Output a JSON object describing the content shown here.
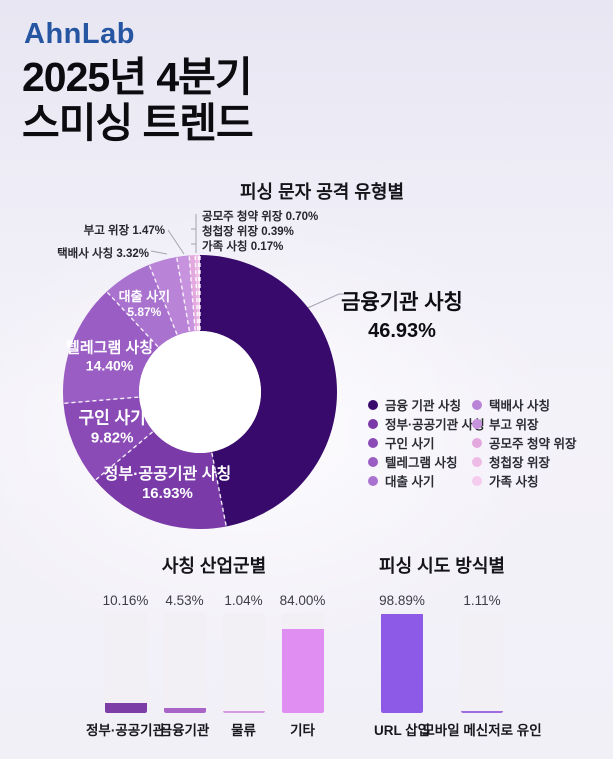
{
  "brand": {
    "logo": "AhnLab",
    "color": "#2656a2"
  },
  "title": {
    "line1": "2025년 4분기",
    "line2": "스미싱 트렌드"
  },
  "chart_data": [
    {
      "type": "pie",
      "title": "피싱 문자 공격 유형별",
      "unit": "%",
      "inner_radius_ratio": 0.445,
      "segments": [
        {
          "label": "금융기관 사칭",
          "value": 46.93,
          "color": "#380a6c"
        },
        {
          "label": "정부·공공기관 사칭",
          "value": 16.93,
          "color": "#7a3aa8"
        },
        {
          "label": "구인 사기",
          "value": 9.82,
          "color": "#8b4bb6"
        },
        {
          "label": "텔레그램 사칭",
          "value": 14.4,
          "color": "#9a5dc4"
        },
        {
          "label": "대출 사기",
          "value": 5.87,
          "color": "#aa72cf"
        },
        {
          "label": "택배사 사칭",
          "value": 3.32,
          "color": "#b983d7"
        },
        {
          "label": "부고 위장",
          "value": 1.47,
          "color": "#c893de"
        },
        {
          "label": "공모주 청약 위장",
          "value": 0.7,
          "color": "#e3a8de"
        },
        {
          "label": "청첩장 위장",
          "value": 0.39,
          "color": "#eebae6"
        },
        {
          "label": "가족 사칭",
          "value": 0.17,
          "color": "#f5cbee"
        }
      ],
      "legend": {
        "position": "right",
        "columns": [
          [
            "금융 기관 사칭",
            "정부·공공기관 사칭",
            "구인 사기",
            "텔레그램 사칭",
            "대출 사기"
          ],
          [
            "택배사 사칭",
            "부고 위장",
            "공모주 청약 위장",
            "청첩장 위장",
            "가족 사칭"
          ]
        ]
      }
    },
    {
      "type": "bar",
      "title": "사칭 산업군별",
      "categories": [
        "정부·공공기관",
        "금융기관",
        "물류",
        "기타"
      ],
      "values": [
        10.16,
        4.53,
        1.04,
        84.0
      ],
      "value_labels": [
        "10.16%",
        "4.53%",
        "1.04%",
        "84.00%"
      ],
      "colors": [
        "#7d3da6",
        "#a864c6",
        "#d79be2",
        "#e18ef2"
      ],
      "ylim": [
        0,
        100
      ],
      "grid": false
    },
    {
      "type": "bar",
      "title": "피싱 시도 방식별",
      "categories": [
        "URL 삽입",
        "모바일 메신저로 유인"
      ],
      "values": [
        98.89,
        1.11
      ],
      "value_labels": [
        "98.89%",
        "1.11%"
      ],
      "colors": [
        "#8d5ae8",
        "#a06ae0"
      ],
      "ylim": [
        0,
        100
      ],
      "grid": false
    }
  ]
}
